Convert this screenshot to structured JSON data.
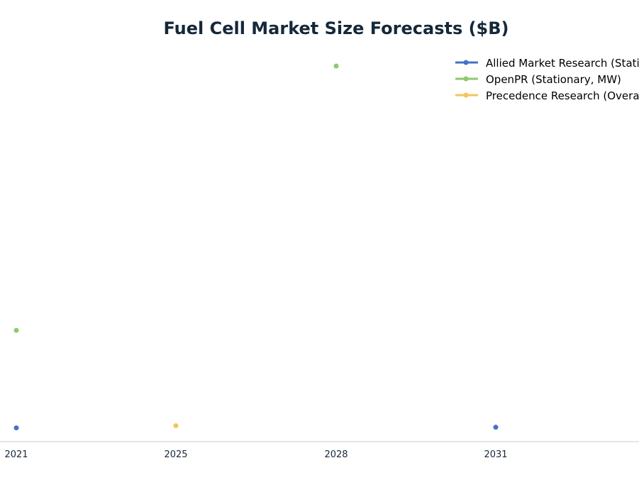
{
  "chart_data": {
    "type": "line",
    "title": "Fuel Cell Market Size Forecasts ($B)",
    "xlabel": "",
    "ylabel": "",
    "x_ticks": [
      "2021",
      "2025",
      "2028",
      "2031"
    ],
    "series": [
      {
        "name": "Allied Market Research (Stationary)",
        "color": "#4472c4",
        "points": [
          {
            "x": "2021",
            "y": 1.1
          },
          {
            "x": "2031",
            "y": 1.6
          }
        ]
      },
      {
        "name": "OpenPR (Stationary, MW)",
        "color": "#8dc96e",
        "points": [
          {
            "x": "2021",
            "y": 79.2
          },
          {
            "x": "2028",
            "y": 290.9
          }
        ]
      },
      {
        "name": "Precedence Research (Overall)",
        "color": "#f4c55a",
        "points": [
          {
            "x": "2025",
            "y": 2.8
          }
        ]
      }
    ],
    "grid": false,
    "legend_position": "top-right"
  }
}
